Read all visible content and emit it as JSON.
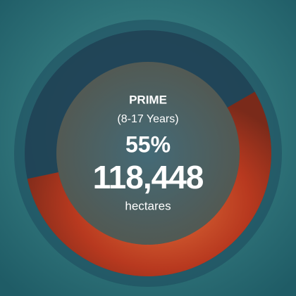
{
  "chart_data": {
    "type": "donut",
    "title": "PRIME",
    "subtitle": "(8-17 Years)",
    "values": [
      55
    ],
    "value_labels": [
      "55%"
    ],
    "color": "#c8452a",
    "annotations": [
      "118,448",
      "hectares"
    ]
  }
}
